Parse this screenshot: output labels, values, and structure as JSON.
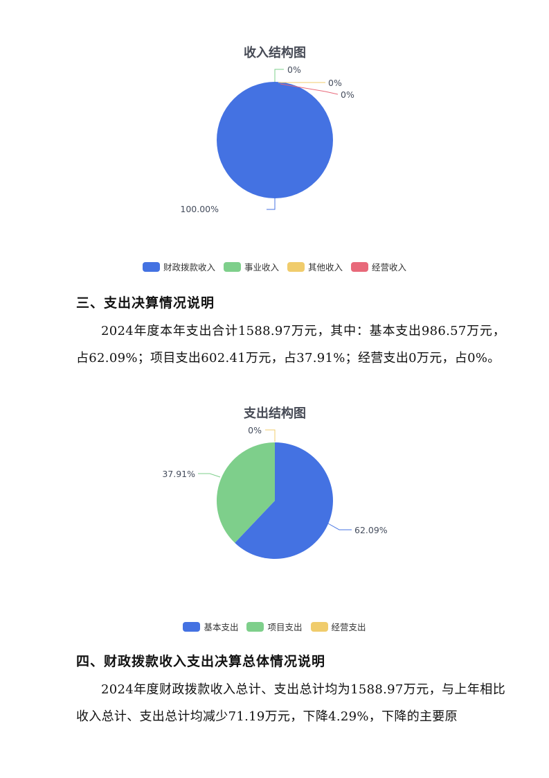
{
  "chart_data": [
    {
      "type": "pie",
      "title": "收入结构图",
      "categories": [
        "财政拨款收入",
        "事业收入",
        "其他收入",
        "经营收入"
      ],
      "values": [
        100.0,
        0,
        0,
        0
      ],
      "labels": [
        "100.00%",
        "0%",
        "0%",
        "0%"
      ],
      "colors": [
        "#4472e2",
        "#7ecf8b",
        "#f0cc6c",
        "#e8697a"
      ],
      "legend": "bottom"
    },
    {
      "type": "pie",
      "title": "支出结构图",
      "categories": [
        "基本支出",
        "项目支出",
        "经营支出"
      ],
      "values": [
        62.09,
        37.91,
        0
      ],
      "labels": [
        "62.09%",
        "37.91%",
        "0%"
      ],
      "colors": [
        "#4472e2",
        "#7ecf8b",
        "#f0cc6c"
      ],
      "legend": "bottom"
    }
  ],
  "sections": [
    {
      "heading": "三、支出决算情况说明",
      "text": "2024年度本年支出合计1588.97万元，其中：基本支出986.57万元，占62.09%；项目支出602.41万元，占37.91%；经营支出0万元，占0%。"
    },
    {
      "heading": "四、财政拨款收入支出决算总体情况说明",
      "text": "2024年度财政拨款收入总计、支出总计均为1588.97万元，与上年相比收入总计、支出总计均减少71.19万元，下降4.29%，下降的主要原"
    }
  ]
}
